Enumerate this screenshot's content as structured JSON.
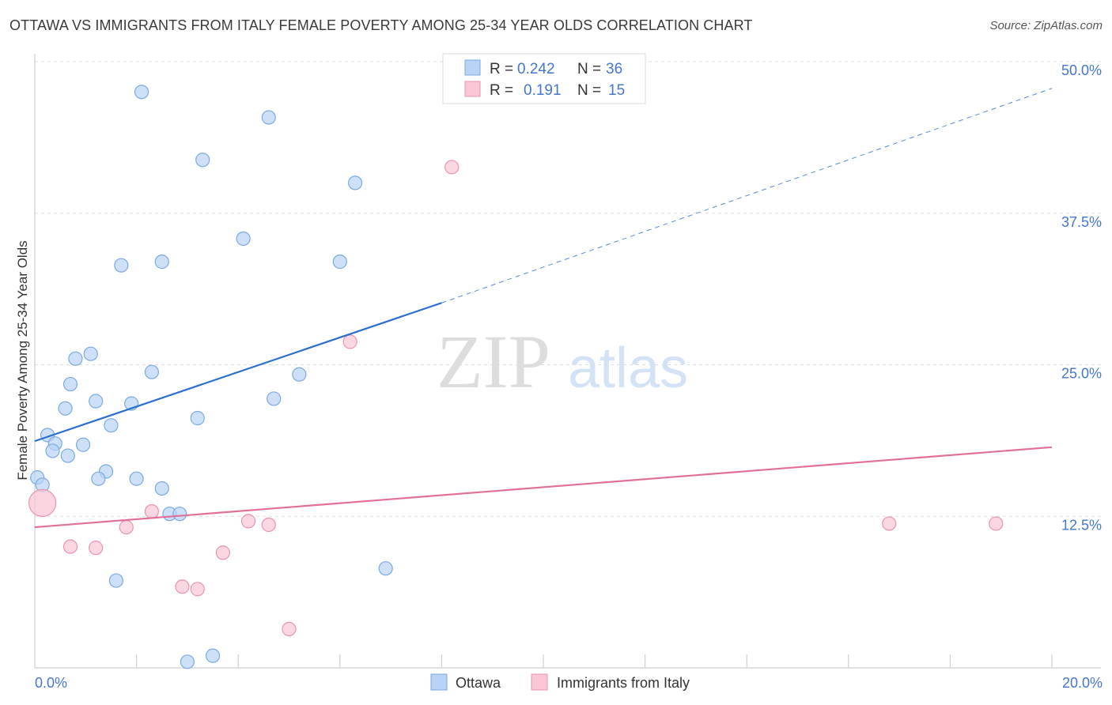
{
  "title": "OTTAWA VS IMMIGRANTS FROM ITALY FEMALE POVERTY AMONG 25-34 YEAR OLDS CORRELATION CHART",
  "source": "Source: ZipAtlas.com",
  "watermark": {
    "zip": "ZIP",
    "atlas": "atlas"
  },
  "colors": {
    "ottawa_fill": "#b9d3f5",
    "ottawa_stroke": "#7aaae3",
    "ottawa_line": "#2a6fcf",
    "italy_fill": "#f8c6d4",
    "italy_stroke": "#ec93ad",
    "italy_line": "#e0709a",
    "tick_label": "#4477cc",
    "grid": "#dddddd"
  },
  "legend": {
    "rows": [
      {
        "r_label": "R =",
        "r_value": "0.242",
        "n_label": "N =",
        "n_value": "36"
      },
      {
        "r_label": "R =",
        "r_value": "0.191",
        "n_label": "N =",
        "n_value": "15"
      }
    ]
  },
  "chart_data": {
    "type": "scatter",
    "title": "OTTAWA VS IMMIGRANTS FROM ITALY FEMALE POVERTY AMONG 25-34 YEAR OLDS CORRELATION CHART",
    "xlabel": "",
    "ylabel": "Female Poverty Among 25-34 Year Olds",
    "xlim": [
      0,
      20
    ],
    "ylim": [
      0,
      50
    ],
    "x_tick_labels": [
      "0.0%",
      "20.0%"
    ],
    "y_ticks": [
      12.5,
      25.0,
      37.5,
      50.0
    ],
    "y_tick_labels": [
      "12.5%",
      "25.0%",
      "37.5%",
      "50.0%"
    ],
    "series": [
      {
        "name": "Ottawa",
        "R": 0.242,
        "N": 36,
        "points": [
          [
            2.1,
            47.5
          ],
          [
            4.6,
            45.4
          ],
          [
            3.3,
            41.9
          ],
          [
            6.3,
            40.0
          ],
          [
            4.1,
            35.4
          ],
          [
            1.7,
            33.2
          ],
          [
            2.5,
            33.5
          ],
          [
            6.0,
            33.5
          ],
          [
            1.1,
            25.9
          ],
          [
            0.8,
            25.5
          ],
          [
            2.3,
            24.4
          ],
          [
            5.2,
            24.2
          ],
          [
            0.7,
            23.4
          ],
          [
            1.2,
            22.0
          ],
          [
            1.9,
            21.8
          ],
          [
            0.6,
            21.4
          ],
          [
            4.7,
            22.2
          ],
          [
            3.2,
            20.6
          ],
          [
            1.5,
            20.0
          ],
          [
            0.25,
            19.2
          ],
          [
            0.4,
            18.5
          ],
          [
            0.95,
            18.4
          ],
          [
            0.35,
            17.9
          ],
          [
            0.65,
            17.5
          ],
          [
            1.4,
            16.2
          ],
          [
            1.25,
            15.6
          ],
          [
            2.0,
            15.6
          ],
          [
            0.05,
            15.7
          ],
          [
            0.15,
            15.1
          ],
          [
            2.5,
            14.8
          ],
          [
            2.65,
            12.7
          ],
          [
            2.85,
            12.7
          ],
          [
            6.9,
            8.2
          ],
          [
            1.6,
            7.2
          ],
          [
            3.5,
            1.0
          ],
          [
            3.0,
            0.5
          ]
        ],
        "trend": {
          "x0": 0,
          "y0": 18.7,
          "x1": 8.0,
          "y1": 30.1,
          "dashed_to_x": 20,
          "dashed_to_y": 47.8
        }
      },
      {
        "name": "Immigrants from Italy",
        "R": 0.191,
        "N": 15,
        "points": [
          [
            8.2,
            41.3
          ],
          [
            6.2,
            26.9
          ],
          [
            0.15,
            13.6
          ],
          [
            2.3,
            12.9
          ],
          [
            4.2,
            12.1
          ],
          [
            4.6,
            11.8
          ],
          [
            1.8,
            11.6
          ],
          [
            16.8,
            11.9
          ],
          [
            18.9,
            11.9
          ],
          [
            0.7,
            10.0
          ],
          [
            1.2,
            9.9
          ],
          [
            3.7,
            9.5
          ],
          [
            2.9,
            6.7
          ],
          [
            3.2,
            6.5
          ],
          [
            5.0,
            3.2
          ]
        ],
        "trend": {
          "x0": 0,
          "y0": 11.6,
          "x1": 20,
          "y1": 18.2
        }
      }
    ]
  }
}
